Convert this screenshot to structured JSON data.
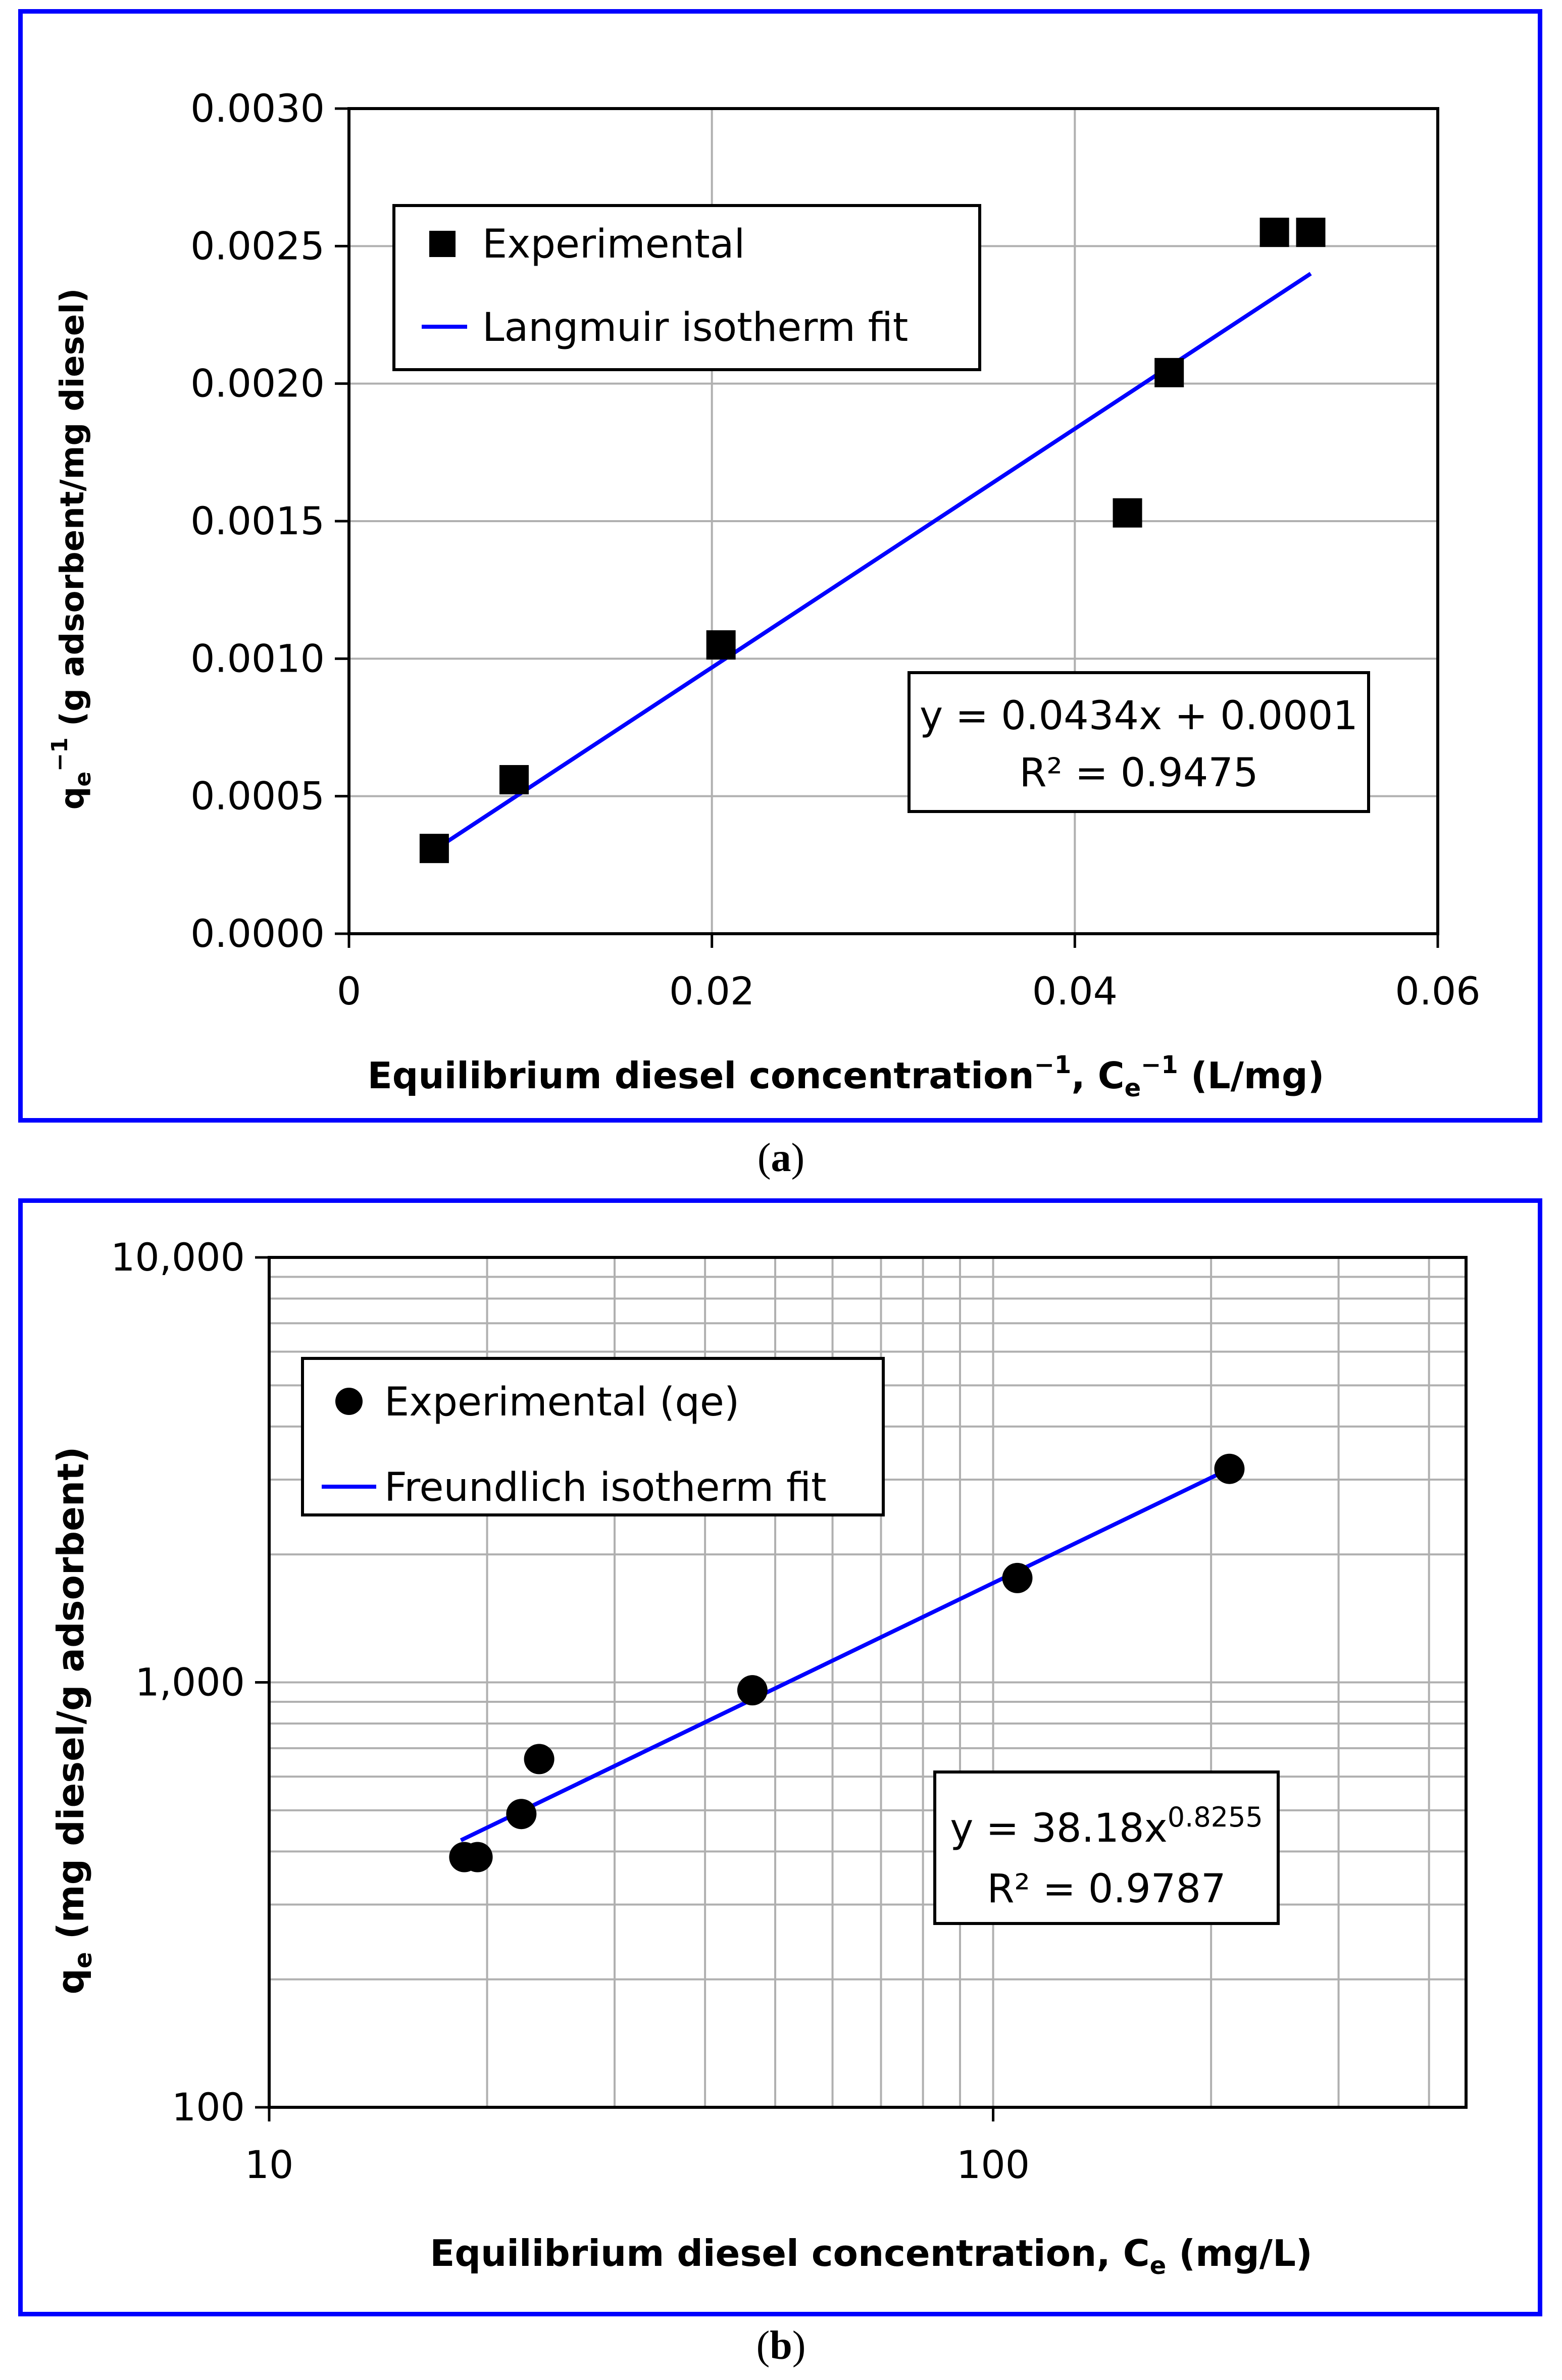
{
  "captions": [
    "(a)",
    "(b)"
  ],
  "colors": {
    "frame": "#0000ff",
    "fit_line": "#0000ff",
    "markers": "#000000",
    "grid": "#b0b0b0"
  },
  "chart_data": [
    {
      "type": "scatter",
      "panel": "a",
      "ylabel_main": "q",
      "ylabel_sub": "e",
      "ylabel_sup": "−1",
      "ylabel_rest": " (g adsorbent/mg diesel)",
      "xlabel_main": "Equilibrium diesel concentration",
      "xlabel_sup1": "−1",
      "xlabel_mid": ", C",
      "xlabel_sub": "e",
      "xlabel_sup2": "−1",
      "xlabel_rest": " (L/mg)",
      "xlim": [
        0,
        0.06
      ],
      "ylim": [
        0,
        0.003
      ],
      "xticks": [
        0,
        0.02,
        0.04,
        0.06
      ],
      "xtick_labels": [
        "0",
        "0.02",
        "0.04",
        "0.06"
      ],
      "yticks": [
        0,
        0.0005,
        0.001,
        0.0015,
        0.002,
        0.0025,
        0.003
      ],
      "ytick_labels": [
        "0.0000",
        "0.0005",
        "0.0010",
        "0.0015",
        "0.0020",
        "0.0025",
        "0.0030"
      ],
      "grid": true,
      "legend": [
        "Experimental",
        "Langmuir isotherm fit"
      ],
      "legend_position": "top-left",
      "series": [
        {
          "name": "Experimental",
          "marker": "square",
          "x": [
            0.0047,
            0.0091,
            0.0205,
            0.0429,
            0.0452,
            0.051,
            0.053
          ],
          "y": [
            0.00031,
            0.00056,
            0.00105,
            0.00153,
            0.00204,
            0.00255,
            0.00255
          ]
        },
        {
          "name": "Langmuir isotherm fit",
          "type": "line",
          "x": [
            0.0047,
            0.053
          ],
          "y": [
            0.000304,
            0.0024
          ]
        }
      ],
      "annotation": [
        "y = 0.0434x + 0.0001",
        "R² = 0.9475"
      ]
    },
    {
      "type": "scatter",
      "panel": "b",
      "scale": "log-log",
      "ylabel_main": "q",
      "ylabel_sub": "e",
      "ylabel_rest": " (mg diesel/g adsorbent)",
      "xlabel_main": "Equilibrium diesel concentration, C",
      "xlabel_sub": "e",
      "xlabel_rest": " (mg/L)",
      "xlim": [
        10,
        450
      ],
      "ylim": [
        100,
        10000
      ],
      "xtick_labels": [
        "10",
        "100"
      ],
      "xticks": [
        10,
        100
      ],
      "ytick_labels": [
        "100",
        "1,000",
        "10,000"
      ],
      "yticks": [
        100,
        1000,
        10000
      ],
      "grid": true,
      "legend": [
        "Experimental (qe)",
        "Freundlich isotherm fit"
      ],
      "legend_position": "top-left",
      "series": [
        {
          "name": "Experimental (qe)",
          "marker": "circle",
          "x": [
            18.6,
            19.4,
            22.3,
            23.6,
            46.5,
            108,
            212
          ],
          "y": [
            388,
            388,
            490,
            660,
            958,
            1760,
            3180
          ]
        },
        {
          "name": "Freundlich isotherm fit",
          "type": "line",
          "x": [
            18.4,
            212
          ],
          "y": [
            425,
            3180
          ]
        }
      ],
      "annotation_main": "y = 38.18x",
      "annotation_sup": "0.8255",
      "annotation_r2": "R² = 0.9787"
    }
  ]
}
